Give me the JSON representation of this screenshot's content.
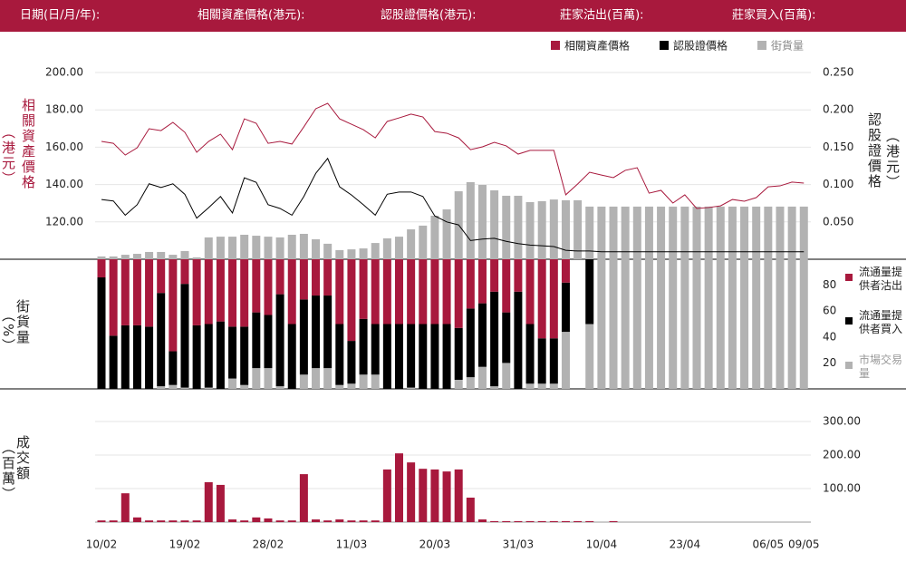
{
  "header": {
    "labels": [
      "日期(日/月/年):",
      "相關資產價格(港元):",
      "認股證價格(港元):",
      "莊家沽出(百萬):",
      "莊家買入(百萬):"
    ]
  },
  "chart_data": [
    {
      "type": "line",
      "y_label": "相關資產價格",
      "y_label_unit": "（港元）",
      "y2_label": "認股證價格",
      "y2_label_unit": "（港元）",
      "ylim": [
        100,
        200
      ],
      "yticks": [
        {
          "value": 120,
          "label": "120.00"
        },
        {
          "value": 140,
          "label": "140.00"
        },
        {
          "value": 160,
          "label": "160.00"
        },
        {
          "value": 180,
          "label": "180.00"
        },
        {
          "value": 200,
          "label": "200.00"
        }
      ],
      "y2lim": [
        0,
        0.25
      ],
      "y2ticks": [
        {
          "value": 0.05,
          "label": "0.050"
        },
        {
          "value": 0.1,
          "label": "0.100"
        },
        {
          "value": 0.15,
          "label": "0.150"
        },
        {
          "value": 0.2,
          "label": "0.200"
        },
        {
          "value": 0.25,
          "label": "0.250"
        }
      ],
      "grid": true,
      "legend": "top-right",
      "series": [
        {
          "name": "相關資產價格",
          "color": "#a8193d",
          "values": [
            163.1,
            162.1,
            155.8,
            159.7,
            169.9,
            168.9,
            173.3,
            168.0,
            157.3,
            163.1,
            167.0,
            158.7,
            175.2,
            172.8,
            162.1,
            163.1,
            161.7,
            170.9,
            180.6,
            183.5,
            175.2,
            172.3,
            169.4,
            165.0,
            173.8,
            175.7,
            177.7,
            176.2,
            168.4,
            167.5,
            165.0,
            158.7,
            160.2,
            162.6,
            160.7,
            156.3,
            158.3,
            158.3,
            158.3,
            134.5,
            140.3,
            146.6,
            145.1,
            143.7,
            147.6,
            149.0,
            135.4,
            136.9,
            130.1,
            134.5,
            127.2,
            127.7,
            128.6,
            132.0,
            131.1,
            133.0,
            138.8,
            139.3,
            141.3,
            140.8
          ]
        },
        {
          "name": "認股證價格",
          "color": "#000000",
          "axis": "y2",
          "values": [
            0.08,
            0.078,
            0.059,
            0.073,
            0.101,
            0.096,
            0.101,
            0.087,
            0.055,
            0.069,
            0.084,
            0.062,
            0.109,
            0.103,
            0.073,
            0.068,
            0.059,
            0.084,
            0.115,
            0.135,
            0.097,
            0.086,
            0.073,
            0.059,
            0.087,
            0.09,
            0.09,
            0.084,
            0.058,
            0.05,
            0.046,
            0.025,
            0.027,
            0.028,
            0.024,
            0.021,
            0.019,
            0.018,
            0.017,
            0.012,
            0.011,
            0.011,
            0.01,
            0.01,
            0.01,
            0.01,
            0.01,
            0.01,
            0.01,
            0.01,
            0.01,
            0.01,
            0.01,
            0.01,
            0.01,
            0.01,
            0.01,
            0.01,
            0.01,
            0.01
          ]
        },
        {
          "name": "街貨量",
          "color": "#b2b2b2",
          "type": "bar",
          "values": [
            101.5,
            101.5,
            102.4,
            102.9,
            103.9,
            103.9,
            102.4,
            104.4,
            101.0,
            111.7,
            112.1,
            112.1,
            113.1,
            112.6,
            112.1,
            111.7,
            113.1,
            113.6,
            110.7,
            108.3,
            104.9,
            105.3,
            105.8,
            108.7,
            111.2,
            112.1,
            116.0,
            118.0,
            123.3,
            126.7,
            136.4,
            141.3,
            139.8,
            136.9,
            134.0,
            134.0,
            130.6,
            131.1,
            132.0,
            131.6,
            131.6,
            128.2,
            128.2,
            128.2,
            128.2,
            128.2,
            128.2,
            128.2,
            128.2,
            128.2,
            128.2,
            128.2,
            128.2,
            128.2,
            128.2,
            128.2,
            128.2,
            128.2,
            128.2,
            128.2
          ]
        }
      ]
    },
    {
      "type": "bar",
      "stacked": true,
      "y_label": "街貨量",
      "y_label_unit": "（%）",
      "ylim": [
        0,
        100
      ],
      "yticks": [
        20,
        40,
        60,
        80
      ],
      "legend": "right",
      "series": [
        {
          "name": "流通量提供者沽出",
          "color": "#a8193d",
          "values": [
            14,
            59,
            51,
            51,
            52,
            26,
            71,
            19,
            51,
            50,
            48,
            52,
            52,
            41,
            43,
            27,
            50,
            31,
            28,
            28,
            50,
            63,
            46,
            50,
            50,
            50,
            50,
            50,
            50,
            50,
            53,
            38,
            34,
            25,
            41,
            25,
            50,
            61,
            61,
            18,
            null,
            null,
            null,
            null,
            null,
            null,
            null,
            null,
            null,
            null,
            null,
            null,
            null,
            null,
            null,
            null,
            null,
            null,
            null,
            null
          ]
        },
        {
          "name": "流通量提供者買入",
          "color": "#000000",
          "values": [
            86,
            41,
            49,
            49,
            48,
            72,
            26,
            80,
            49,
            49,
            52,
            40,
            45,
            43,
            41,
            71,
            50,
            58,
            56,
            56,
            47,
            33,
            43,
            39,
            50,
            50,
            49,
            50,
            50,
            50,
            40,
            53,
            49,
            73,
            39,
            75,
            46,
            35,
            35,
            38,
            null,
            50,
            null,
            null,
            null,
            null,
            null,
            null,
            null,
            null,
            null,
            null,
            null,
            null,
            null,
            null,
            null,
            null,
            null,
            null
          ]
        },
        {
          "name": "市場交易量",
          "color": "#b2b2b2",
          "values": [
            0,
            0,
            0,
            0,
            0,
            2,
            3,
            1,
            0,
            1,
            0,
            8,
            3,
            16,
            16,
            2,
            0,
            11,
            16,
            16,
            3,
            4,
            11,
            11,
            0,
            0,
            1,
            0,
            0,
            0,
            7,
            9,
            17,
            2,
            20,
            0,
            4,
            4,
            4,
            44,
            null,
            50,
            100,
            100,
            100,
            100,
            100,
            100,
            100,
            100,
            100,
            100,
            100,
            100,
            100,
            100,
            100,
            100,
            100,
            100
          ]
        }
      ]
    },
    {
      "type": "bar",
      "y_label": "成交額",
      "y_label_unit": "（百萬）",
      "ylim": [
        0,
        300
      ],
      "yticks": [
        {
          "value": 100,
          "label": "100.00"
        },
        {
          "value": 200,
          "label": "200.00"
        },
        {
          "value": 300,
          "label": "300.00"
        }
      ],
      "grid": true,
      "color": "#a8193d",
      "categories": [
        "10/02",
        null,
        null,
        null,
        null,
        null,
        null,
        "19/02",
        null,
        null,
        null,
        null,
        null,
        null,
        "28/02",
        null,
        null,
        null,
        null,
        null,
        null,
        "11/03",
        null,
        null,
        null,
        null,
        null,
        null,
        "20/03",
        null,
        null,
        null,
        null,
        null,
        null,
        "31/03",
        null,
        null,
        null,
        null,
        null,
        null,
        "10/04",
        null,
        null,
        null,
        null,
        null,
        null,
        "23/04",
        null,
        null,
        null,
        null,
        null,
        null,
        "06/05",
        null,
        null,
        "09/05"
      ],
      "values": [
        5,
        5,
        86,
        14,
        5,
        5,
        5,
        5,
        5,
        119,
        111,
        8,
        5,
        14,
        11,
        5,
        5,
        143,
        8,
        5,
        8,
        5,
        5,
        5,
        157,
        205,
        178,
        159,
        157,
        151,
        157,
        73,
        8,
        3,
        3,
        3,
        3,
        3,
        3,
        3,
        3,
        3,
        null,
        3,
        null,
        null,
        null,
        null,
        null,
        null,
        null,
        null,
        null,
        null,
        null,
        null,
        null,
        null,
        null,
        null
      ]
    }
  ]
}
